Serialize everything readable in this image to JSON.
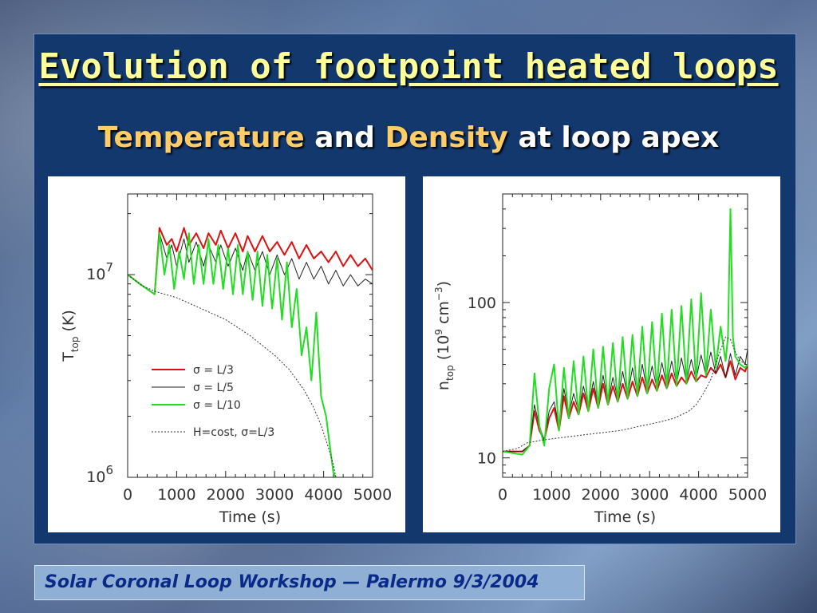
{
  "slide": {
    "title": "Evolution of footpoint heated loops",
    "subtitle_part1": "Temperature",
    "subtitle_part2": " and ",
    "subtitle_part3": "Density",
    "subtitle_part4": " at loop apex",
    "footer": "Solar Coronal Loop Workshop — Palermo 9/3/2004"
  },
  "colors": {
    "red": "#dd1111",
    "black": "#222222",
    "green": "#22dd22",
    "dotted": "#333333"
  },
  "chart_data": [
    {
      "type": "line",
      "xlabel": "Time (s)",
      "ylabel": "T",
      "ylabel_sub": "top",
      "ylabel_unit": " (K)",
      "xlim": [
        0,
        5000
      ],
      "ylim": [
        1000000,
        25000000
      ],
      "yscale": "log",
      "xticks": [
        0,
        1000,
        2000,
        3000,
        4000,
        5000
      ],
      "xtick_labels": [
        "0",
        "1000",
        "2000",
        "3000",
        "4000",
        "5000"
      ],
      "yticks": [
        {
          "value": 10000000,
          "base": "10",
          "exp": "7"
        },
        {
          "value": 1000000,
          "base": "10",
          "exp": "6"
        }
      ],
      "legend": [
        {
          "label": "σ = L/3",
          "color": "#dd1111",
          "style": "solid"
        },
        {
          "label": "σ = L/5",
          "color": "#222222",
          "style": "solid"
        },
        {
          "label": "σ = L/10",
          "color": "#22dd22",
          "style": "solid"
        },
        {
          "label": "H=cost, σ=L/3",
          "color": "#333333",
          "style": "dotted"
        }
      ],
      "series": [
        {
          "x": [
            0,
            250,
            550,
            650,
            800,
            900,
            1000,
            1150,
            1250,
            1400,
            1550,
            1650,
            1800,
            1900,
            2050,
            2200,
            2350,
            2450,
            2600,
            2750,
            2900,
            3050,
            3200,
            3350,
            3500,
            3650,
            3800,
            3950,
            4100,
            4250,
            4400,
            4550,
            4700,
            4850,
            5000
          ],
          "y": [
            10000000,
            9000000,
            8000000,
            17000000,
            14000000,
            15000000,
            13000000,
            17000000,
            14000000,
            16000000,
            13500000,
            16000000,
            14000000,
            16500000,
            13500000,
            16000000,
            13000000,
            15500000,
            13000000,
            15500000,
            13000000,
            14500000,
            12500000,
            14500000,
            12000000,
            14000000,
            12000000,
            13000000,
            11500000,
            13000000,
            11000000,
            12500000,
            11000000,
            12000000,
            10500000
          ]
        },
        {
          "x": [
            0,
            250,
            550,
            650,
            800,
            900,
            1000,
            1150,
            1250,
            1400,
            1550,
            1650,
            1800,
            1900,
            2050,
            2200,
            2350,
            2450,
            2600,
            2750,
            2900,
            3050,
            3200,
            3350,
            3500,
            3650,
            3800,
            3950,
            4100,
            4250,
            4400,
            4550,
            4700,
            4850,
            5000
          ],
          "y": [
            10000000,
            9000000,
            8000000,
            16000000,
            12000000,
            14000000,
            11000000,
            15000000,
            11500000,
            14500000,
            11000000,
            14000000,
            11500000,
            14000000,
            11000000,
            13500000,
            10500000,
            13000000,
            10500000,
            13000000,
            10000000,
            12500000,
            10000000,
            12000000,
            9500000,
            11500000,
            9500000,
            11000000,
            9000000,
            10500000,
            8800000,
            10000000,
            8800000,
            9500000,
            9000000
          ]
        },
        {
          "x": [
            0,
            250,
            550,
            650,
            750,
            850,
            950,
            1050,
            1150,
            1250,
            1350,
            1450,
            1550,
            1650,
            1750,
            1850,
            1950,
            2050,
            2150,
            2250,
            2350,
            2450,
            2550,
            2650,
            2750,
            2850,
            2950,
            3050,
            3150,
            3250,
            3350,
            3450,
            3550,
            3650,
            3750,
            3850,
            3950,
            4050,
            4150,
            4200,
            4250
          ],
          "y": [
            10000000,
            9000000,
            8000000,
            16000000,
            10000000,
            14000000,
            8500000,
            13000000,
            9500000,
            16000000,
            9000000,
            14000000,
            9000000,
            15000000,
            9000000,
            14000000,
            8500000,
            13500000,
            8000000,
            14000000,
            8000000,
            13000000,
            7500000,
            13000000,
            7000000,
            12500000,
            6800000,
            12000000,
            6000000,
            11500000,
            5500000,
            8500000,
            4000000,
            5500000,
            3000000,
            6500000,
            2500000,
            2000000,
            1300000,
            1050000,
            1000000
          ]
        },
        {
          "x": [
            0,
            300,
            600,
            1000,
            1500,
            2000,
            2500,
            3000,
            3300,
            3600,
            3800,
            3950,
            4100,
            4200,
            4250
          ],
          "y": [
            10000000,
            8800000,
            8200000,
            7700000,
            6800000,
            6000000,
            5000000,
            4000000,
            3400000,
            2700000,
            2200000,
            1800000,
            1400000,
            1150000,
            1000000
          ]
        }
      ]
    },
    {
      "type": "line",
      "xlabel": "Time (s)",
      "ylabel": "n",
      "ylabel_sub": "top",
      "ylabel_unit": "  (10",
      "ylabel_exp": "9",
      "ylabel_unit2": " cm",
      "ylabel_exp2": "−3",
      "ylabel_close": ")",
      "xlim": [
        0,
        5000
      ],
      "ylim": [
        7.5,
        500
      ],
      "yscale": "log",
      "xticks": [
        0,
        1000,
        2000,
        3000,
        4000,
        5000
      ],
      "xtick_labels": [
        "0",
        "1000",
        "2000",
        "3000",
        "4000",
        "5000"
      ],
      "yticks": [
        {
          "value": 100,
          "label": "100"
        },
        {
          "value": 10,
          "label": "10"
        }
      ],
      "series": [
        {
          "x": [
            0,
            400,
            550,
            650,
            750,
            850,
            950,
            1050,
            1150,
            1250,
            1350,
            1450,
            1550,
            1650,
            1750,
            1850,
            1950,
            2050,
            2150,
            2250,
            2350,
            2450,
            2550,
            2650,
            2750,
            2850,
            2950,
            3050,
            3150,
            3250,
            3350,
            3450,
            3550,
            3650,
            3750,
            3850,
            3950,
            4050,
            4150,
            4250,
            4350,
            4450,
            4550,
            4650,
            4750,
            4850,
            4950,
            5000
          ],
          "y": [
            11,
            11,
            12,
            20,
            15,
            13,
            18,
            21,
            15,
            25,
            18,
            23,
            19,
            26,
            20,
            28,
            21,
            30,
            22,
            29,
            23,
            30,
            24,
            31,
            25,
            33,
            26,
            32,
            27,
            34,
            28,
            35,
            29,
            33,
            30,
            36,
            31,
            34,
            33,
            38,
            35,
            40,
            33,
            42,
            32,
            38,
            36,
            40
          ]
        },
        {
          "x": [
            0,
            400,
            550,
            650,
            750,
            850,
            950,
            1050,
            1150,
            1250,
            1350,
            1450,
            1550,
            1650,
            1750,
            1850,
            1950,
            2050,
            2150,
            2250,
            2350,
            2450,
            2550,
            2650,
            2750,
            2850,
            2950,
            3050,
            3150,
            3250,
            3350,
            3450,
            3550,
            3650,
            3750,
            3850,
            3950,
            4050,
            4150,
            4250,
            4350,
            4450,
            4550,
            4650,
            4750,
            4850,
            4950,
            5000
          ],
          "y": [
            11,
            11,
            12,
            22,
            16,
            13,
            20,
            23,
            16,
            28,
            19,
            26,
            20,
            29,
            21,
            31,
            22,
            34,
            23,
            33,
            24,
            36,
            25,
            38,
            26,
            40,
            27,
            39,
            28,
            41,
            29,
            42,
            30,
            44,
            31,
            43,
            32,
            46,
            34,
            48,
            35,
            45,
            33,
            47,
            34,
            45,
            40,
            50
          ]
        },
        {
          "x": [
            0,
            400,
            550,
            650,
            750,
            850,
            950,
            1050,
            1150,
            1250,
            1350,
            1450,
            1550,
            1650,
            1750,
            1850,
            1950,
            2050,
            2150,
            2250,
            2350,
            2450,
            2550,
            2650,
            2750,
            2850,
            2950,
            3050,
            3150,
            3250,
            3350,
            3450,
            3550,
            3650,
            3750,
            3850,
            3950,
            4050,
            4150,
            4250,
            4350,
            4450,
            4550,
            4600,
            4650,
            4700,
            4750,
            4850,
            4950,
            5000
          ],
          "y": [
            11,
            10.5,
            12,
            35,
            16,
            12,
            28,
            40,
            15,
            38,
            18,
            42,
            19,
            45,
            20,
            50,
            21,
            52,
            22,
            55,
            23,
            60,
            24,
            62,
            25,
            70,
            26,
            75,
            27,
            85,
            28,
            90,
            29,
            95,
            30,
            105,
            31,
            115,
            34,
            90,
            38,
            70,
            42,
            60,
            400,
            60,
            45,
            40,
            38,
            40
          ]
        },
        {
          "x": [
            0,
            300,
            500,
            800,
            1200,
            1600,
            2000,
            2400,
            2800,
            3200,
            3500,
            3800,
            3950,
            4100,
            4250,
            4400,
            4550,
            4650,
            4750,
            4850,
            5000
          ],
          "y": [
            11,
            11.5,
            12.5,
            13,
            13.5,
            14,
            14.5,
            15,
            16,
            17,
            18,
            20,
            22,
            26,
            32,
            45,
            60,
            58,
            48,
            42,
            40
          ]
        }
      ]
    }
  ]
}
